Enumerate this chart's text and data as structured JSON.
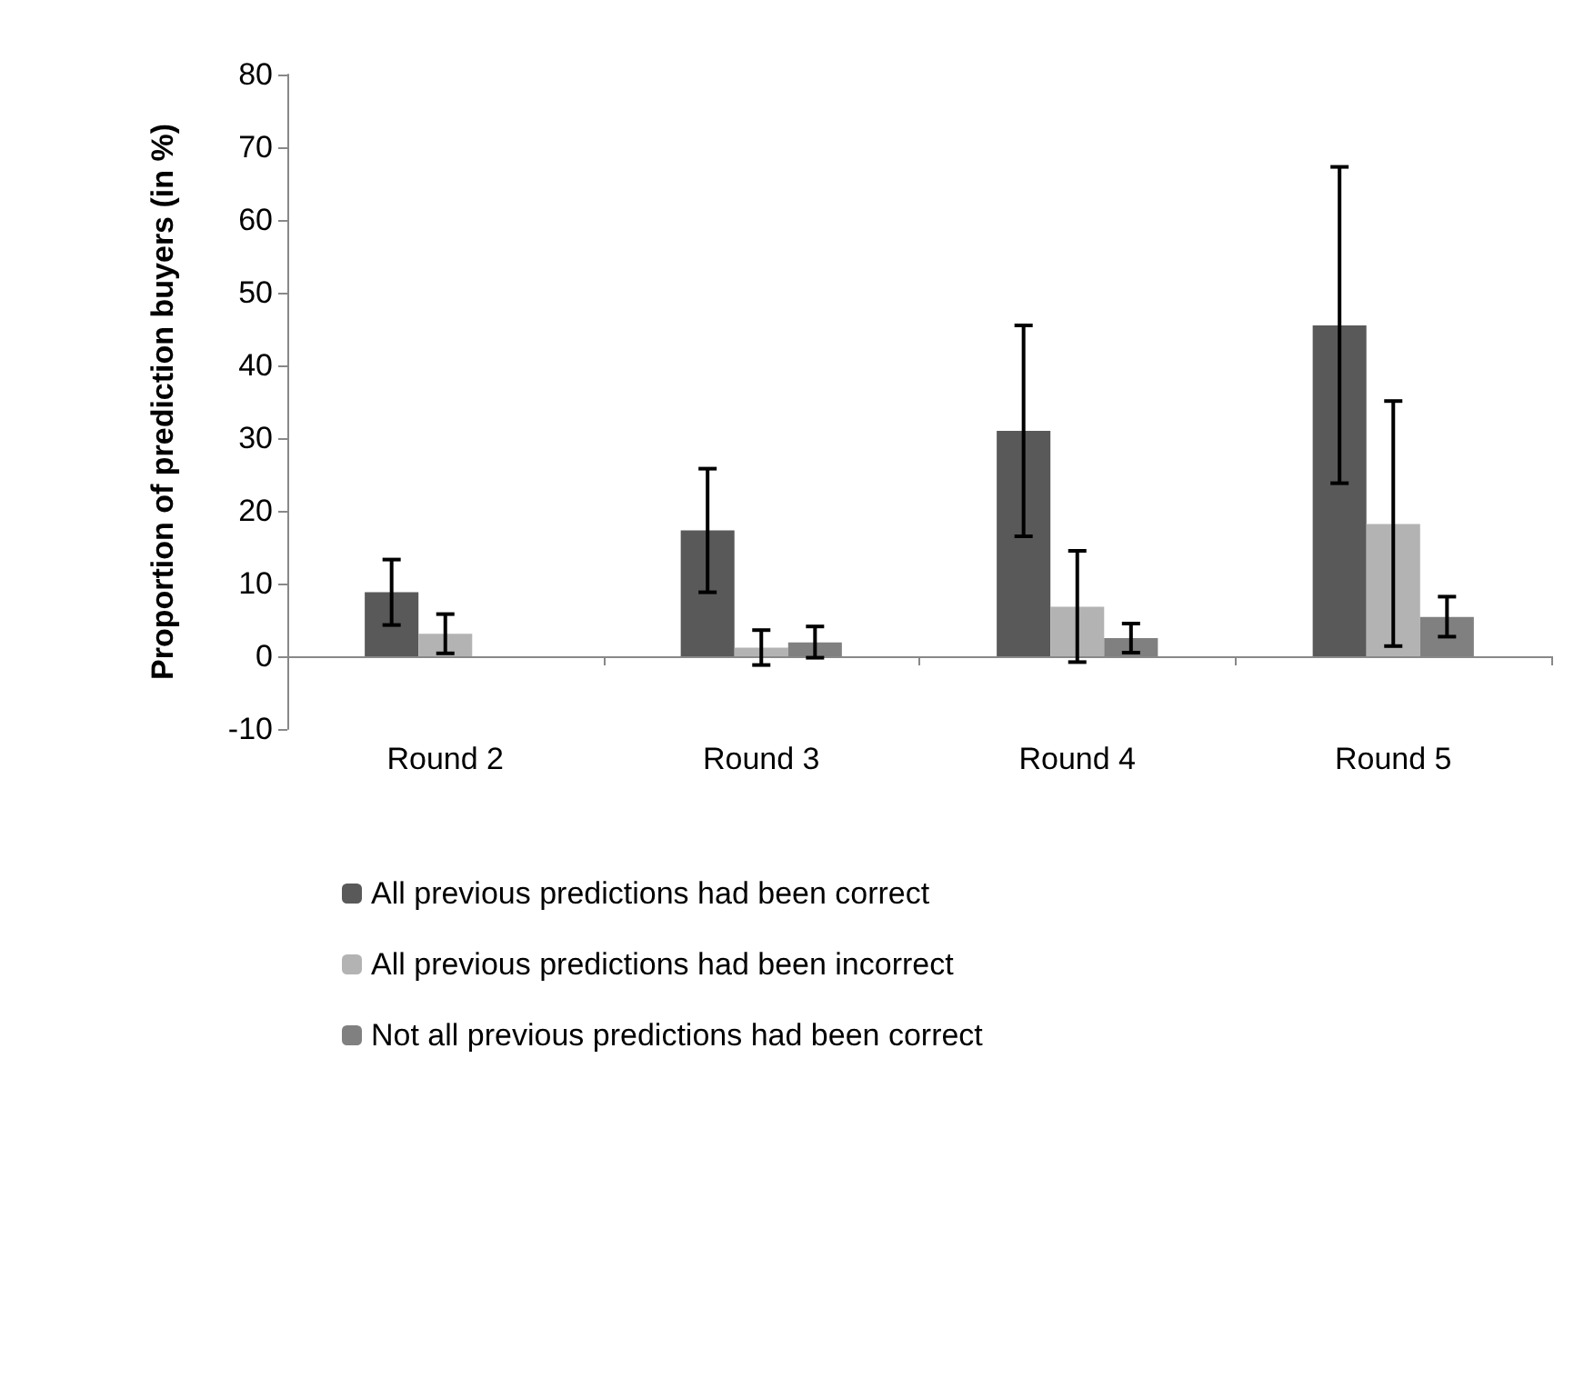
{
  "chart_data": {
    "type": "bar",
    "ylabel": "Proportion of prediction buyers (in %)",
    "categories": [
      "Round 2",
      "Round 3",
      "Round 4",
      "Round 5"
    ],
    "series": [
      {
        "name": "All previous predictions had been correct",
        "color": "#595959",
        "values": [
          8.8,
          17.3,
          31,
          45.5
        ],
        "errors": [
          [
            4.3,
            13.3
          ],
          [
            8.8,
            25.8
          ],
          [
            16.5,
            45.5
          ],
          [
            23.8,
            67.3
          ]
        ]
      },
      {
        "name": "All previous predictions had been incorrect",
        "color": "#b3b3b3",
        "values": [
          3.1,
          1.2,
          6.8,
          18.2
        ],
        "errors": [
          [
            0.4,
            5.8
          ],
          [
            -1.2,
            3.6
          ],
          [
            -0.8,
            14.5
          ],
          [
            1.4,
            35.1
          ]
        ]
      },
      {
        "name": "Not all previous predictions had been correct",
        "color": "#808080",
        "values": [
          null,
          1.9,
          2.5,
          5.4
        ],
        "errors": [
          null,
          [
            -0.2,
            4.1
          ],
          [
            0.5,
            4.5
          ],
          [
            2.7,
            8.2
          ]
        ]
      }
    ],
    "ylim": [
      -10,
      80
    ],
    "yticks": [
      -10,
      0,
      10,
      20,
      30,
      40,
      50,
      60,
      70,
      80
    ],
    "legend": "bottom"
  }
}
